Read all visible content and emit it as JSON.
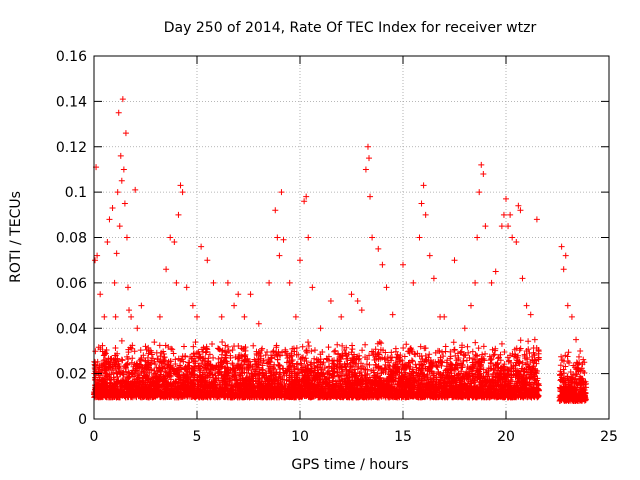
{
  "chart_data": {
    "type": "scatter",
    "title": "Day 250 of 2014, Rate Of TEC Index for receiver wtzr",
    "xlabel": "GPS time / hours",
    "ylabel": "ROTI / TECUs",
    "xlim": [
      0,
      25
    ],
    "ylim": [
      0,
      0.16
    ],
    "xticks": [
      0,
      5,
      10,
      15,
      20,
      25
    ],
    "xtick_labels": [
      "0",
      "5",
      "10",
      "15",
      "20",
      "25"
    ],
    "yticks": [
      0,
      0.02,
      0.04,
      0.06,
      0.08,
      0.1,
      0.12,
      0.14,
      0.16
    ],
    "ytick_labels": [
      "0",
      "0.02",
      "0.04",
      "0.06",
      "0.08",
      "0.1",
      "0.12",
      "0.14",
      "0.16"
    ],
    "grid": true,
    "marker": "+",
    "color": "#ff0000",
    "series": [
      {
        "name": "ROTI",
        "description_note": "dense point cloud; representative visible points",
        "x": [
          0.05,
          0.1,
          0.15,
          0.3,
          0.5,
          0.65,
          0.75,
          0.9,
          1.0,
          1.05,
          1.1,
          1.15,
          1.2,
          1.25,
          1.3,
          1.35,
          1.4,
          1.45,
          1.5,
          1.55,
          1.6,
          1.65,
          1.7,
          1.8,
          2.0,
          2.1,
          2.3,
          2.5,
          3.2,
          3.5,
          3.7,
          3.9,
          4.0,
          4.1,
          4.2,
          4.3,
          4.5,
          4.8,
          5.0,
          5.2,
          5.5,
          5.8,
          6.2,
          6.5,
          6.8,
          7.0,
          7.3,
          7.6,
          8.0,
          8.5,
          8.8,
          8.9,
          9.0,
          9.1,
          9.2,
          9.5,
          9.8,
          10.0,
          10.2,
          10.3,
          10.4,
          10.6,
          11.0,
          11.5,
          12.0,
          12.5,
          12.8,
          13.0,
          13.2,
          13.3,
          13.35,
          13.4,
          13.5,
          13.8,
          14.0,
          14.2,
          14.5,
          15.0,
          15.5,
          15.8,
          15.9,
          16.0,
          16.1,
          16.3,
          16.5,
          16.8,
          17.0,
          17.5,
          18.0,
          18.3,
          18.5,
          18.6,
          18.7,
          18.8,
          18.9,
          19.0,
          19.3,
          19.5,
          19.8,
          19.9,
          20.0,
          20.1,
          20.2,
          20.3,
          20.5,
          20.6,
          20.7,
          20.8,
          21.0,
          21.2,
          21.4,
          21.5,
          22.7,
          22.8,
          22.9,
          23.0,
          23.2,
          23.4,
          23.6,
          23.8
        ],
        "y": [
          0.07,
          0.111,
          0.072,
          0.055,
          0.045,
          0.078,
          0.088,
          0.093,
          0.06,
          0.045,
          0.073,
          0.1,
          0.135,
          0.085,
          0.116,
          0.105,
          0.141,
          0.11,
          0.095,
          0.126,
          0.08,
          0.058,
          0.048,
          0.045,
          0.101,
          0.04,
          0.05,
          0.032,
          0.045,
          0.066,
          0.08,
          0.078,
          0.06,
          0.09,
          0.103,
          0.1,
          0.058,
          0.05,
          0.045,
          0.076,
          0.07,
          0.06,
          0.045,
          0.06,
          0.05,
          0.055,
          0.045,
          0.055,
          0.042,
          0.06,
          0.092,
          0.08,
          0.072,
          0.1,
          0.079,
          0.06,
          0.045,
          0.07,
          0.096,
          0.098,
          0.08,
          0.058,
          0.04,
          0.052,
          0.045,
          0.055,
          0.052,
          0.048,
          0.11,
          0.12,
          0.115,
          0.098,
          0.08,
          0.075,
          0.068,
          0.058,
          0.046,
          0.068,
          0.06,
          0.08,
          0.095,
          0.103,
          0.09,
          0.072,
          0.062,
          0.045,
          0.045,
          0.07,
          0.04,
          0.05,
          0.06,
          0.08,
          0.1,
          0.112,
          0.108,
          0.085,
          0.06,
          0.065,
          0.085,
          0.09,
          0.097,
          0.085,
          0.09,
          0.08,
          0.078,
          0.094,
          0.092,
          0.062,
          0.05,
          0.046,
          0.035,
          0.088,
          0.076,
          0.066,
          0.072,
          0.05,
          0.045,
          0.035,
          0.03,
          0.025
        ]
      }
    ],
    "clusters": [
      {
        "x_start": 0.0,
        "x_end": 21.6,
        "y_low": 0.005,
        "y_high": 0.035
      },
      {
        "x_start": 22.6,
        "x_end": 23.9,
        "y_low": 0.004,
        "y_high": 0.03
      }
    ]
  }
}
